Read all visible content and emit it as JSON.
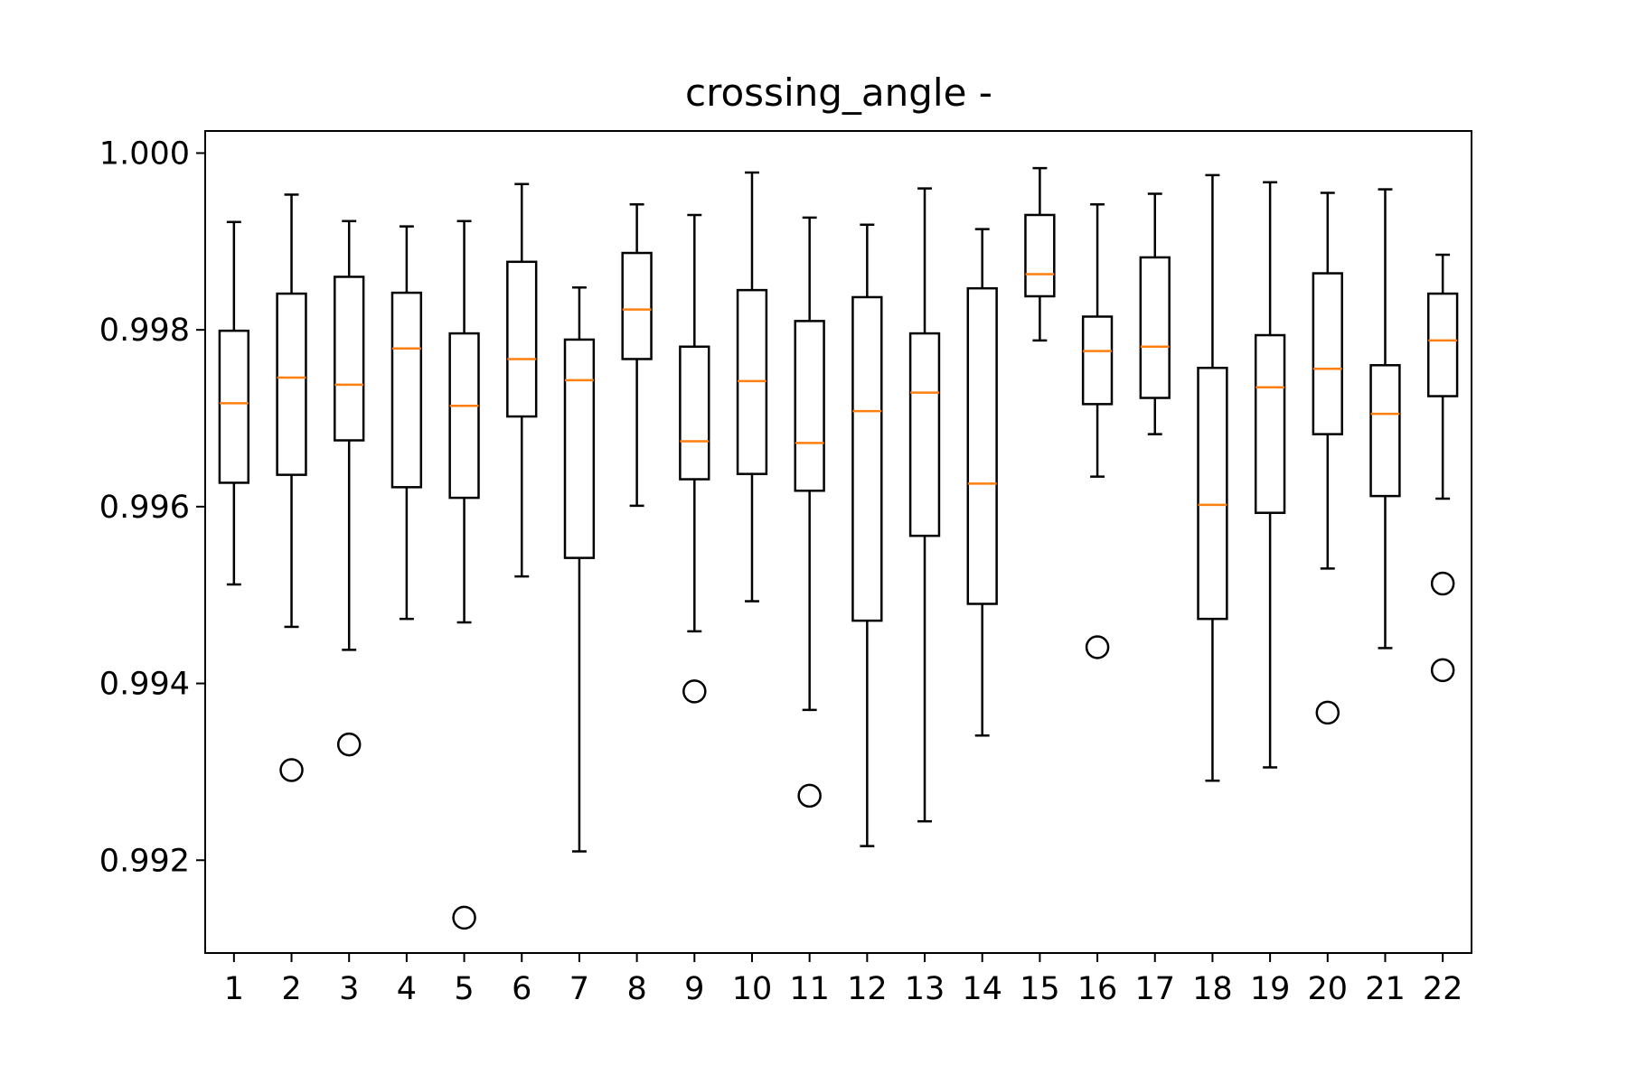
{
  "chart_data": {
    "type": "boxplot",
    "title": "crossing_angle -",
    "xlabel": "",
    "ylabel": "",
    "categories": [
      "1",
      "2",
      "3",
      "4",
      "5",
      "6",
      "7",
      "8",
      "9",
      "10",
      "11",
      "12",
      "13",
      "14",
      "15",
      "16",
      "17",
      "18",
      "19",
      "20",
      "21",
      "22"
    ],
    "ylim": [
      0.99095,
      1.00025
    ],
    "yticks": [
      0.992,
      0.994,
      0.996,
      0.998,
      1.0
    ],
    "ytick_labels": [
      "0.992",
      "0.994",
      "0.996",
      "0.998",
      "1.000"
    ],
    "grid": false,
    "colors": {
      "box": "#000000",
      "median": "#ff7f0e",
      "flier": "#000000"
    },
    "boxes": [
      {
        "label": "1",
        "whislo": 0.99512,
        "q1": 0.99627,
        "med": 0.99717,
        "q3": 0.99799,
        "whishi": 0.99922,
        "fliers": []
      },
      {
        "label": "2",
        "whislo": 0.99464,
        "q1": 0.99636,
        "med": 0.99746,
        "q3": 0.99841,
        "whishi": 0.99953,
        "fliers": [
          0.99302
        ]
      },
      {
        "label": "3",
        "whislo": 0.99438,
        "q1": 0.99675,
        "med": 0.99738,
        "q3": 0.9986,
        "whishi": 0.99923,
        "fliers": [
          0.99331
        ]
      },
      {
        "label": "4",
        "whislo": 0.99473,
        "q1": 0.99622,
        "med": 0.99779,
        "q3": 0.99842,
        "whishi": 0.99917,
        "fliers": []
      },
      {
        "label": "5",
        "whislo": 0.99469,
        "q1": 0.9961,
        "med": 0.99714,
        "q3": 0.99796,
        "whishi": 0.99923,
        "fliers": [
          0.99135
        ]
      },
      {
        "label": "6",
        "whislo": 0.99521,
        "q1": 0.99702,
        "med": 0.99767,
        "q3": 0.99877,
        "whishi": 0.99965,
        "fliers": []
      },
      {
        "label": "7",
        "whislo": 0.9921,
        "q1": 0.99542,
        "med": 0.99743,
        "q3": 0.99789,
        "whishi": 0.99848,
        "fliers": []
      },
      {
        "label": "8",
        "whislo": 0.99601,
        "q1": 0.99767,
        "med": 0.99823,
        "q3": 0.99887,
        "whishi": 0.99942,
        "fliers": []
      },
      {
        "label": "9",
        "whislo": 0.99459,
        "q1": 0.99631,
        "med": 0.99674,
        "q3": 0.99781,
        "whishi": 0.9993,
        "fliers": [
          0.99391
        ]
      },
      {
        "label": "10",
        "whislo": 0.99493,
        "q1": 0.99637,
        "med": 0.99742,
        "q3": 0.99845,
        "whishi": 0.99978,
        "fliers": []
      },
      {
        "label": "11",
        "whislo": 0.9937,
        "q1": 0.99618,
        "med": 0.99672,
        "q3": 0.9981,
        "whishi": 0.99927,
        "fliers": [
          0.99273
        ]
      },
      {
        "label": "12",
        "whislo": 0.99216,
        "q1": 0.99471,
        "med": 0.99708,
        "q3": 0.99837,
        "whishi": 0.99919,
        "fliers": []
      },
      {
        "label": "13",
        "whislo": 0.99244,
        "q1": 0.99567,
        "med": 0.99729,
        "q3": 0.99796,
        "whishi": 0.9996,
        "fliers": []
      },
      {
        "label": "14",
        "whislo": 0.99341,
        "q1": 0.9949,
        "med": 0.99626,
        "q3": 0.99847,
        "whishi": 0.99914,
        "fliers": []
      },
      {
        "label": "15",
        "whislo": 0.99788,
        "q1": 0.99838,
        "med": 0.99863,
        "q3": 0.9993,
        "whishi": 0.99983,
        "fliers": []
      },
      {
        "label": "16",
        "whislo": 0.99634,
        "q1": 0.99716,
        "med": 0.99776,
        "q3": 0.99815,
        "whishi": 0.99942,
        "fliers": [
          0.99441
        ]
      },
      {
        "label": "17",
        "whislo": 0.99682,
        "q1": 0.99723,
        "med": 0.99781,
        "q3": 0.99882,
        "whishi": 0.99954,
        "fliers": []
      },
      {
        "label": "18",
        "whislo": 0.9929,
        "q1": 0.99473,
        "med": 0.99602,
        "q3": 0.99757,
        "whishi": 0.99975,
        "fliers": []
      },
      {
        "label": "19",
        "whislo": 0.99305,
        "q1": 0.99593,
        "med": 0.99735,
        "q3": 0.99794,
        "whishi": 0.99967,
        "fliers": []
      },
      {
        "label": "20",
        "whislo": 0.9953,
        "q1": 0.99682,
        "med": 0.99756,
        "q3": 0.99864,
        "whishi": 0.99955,
        "fliers": [
          0.99367
        ]
      },
      {
        "label": "21",
        "whislo": 0.9944,
        "q1": 0.99612,
        "med": 0.99705,
        "q3": 0.9976,
        "whishi": 0.99959,
        "fliers": []
      },
      {
        "label": "22",
        "whislo": 0.99609,
        "q1": 0.99725,
        "med": 0.99788,
        "q3": 0.99841,
        "whishi": 0.99885,
        "fliers": [
          0.99513,
          0.99415
        ]
      }
    ]
  }
}
